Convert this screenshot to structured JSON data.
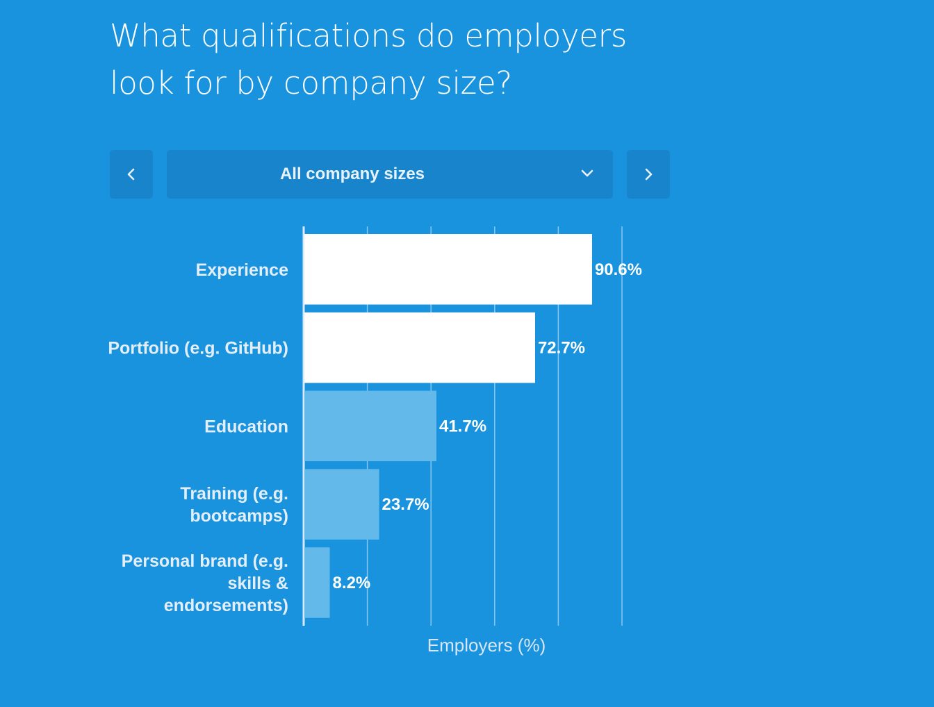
{
  "title_lines": [
    "What qualifications do employers",
    "look for by company size?"
  ],
  "filter": {
    "selected": "All company sizes",
    "prev_icon": "chevron-left-icon",
    "next_icon": "chevron-right-icon",
    "dropdown_icon": "chevron-down-icon"
  },
  "colors": {
    "background": "#1a93de",
    "control": "#1884cc",
    "bar_highlight": "#ffffff",
    "bar_normal": "#63b9ea",
    "gridline": "#8cc6ee"
  },
  "chart_data": {
    "type": "bar",
    "orientation": "horizontal",
    "categories": [
      "Experience",
      "Portfolio (e.g. GitHub)",
      "Education",
      "Training (e.g. bootcamps)",
      "Personal brand (e.g. skills & endorsements)"
    ],
    "category_label_lines": [
      [
        "Experience"
      ],
      [
        "Portfolio (e.g. GitHub)"
      ],
      [
        "Education"
      ],
      [
        "Training (e.g.",
        "bootcamps)"
      ],
      [
        "Personal brand (e.g.",
        "skills &",
        "endorsements)"
      ]
    ],
    "values": [
      90.6,
      72.7,
      41.7,
      23.7,
      8.2
    ],
    "value_labels": [
      "90.6%",
      "72.7%",
      "41.7%",
      "23.7%",
      "8.2%"
    ],
    "highlighted": [
      true,
      true,
      false,
      false,
      false
    ],
    "xlabel": "Employers (%)",
    "ylabel": "",
    "xlim": [
      0,
      100
    ],
    "gridlines": [
      0,
      20,
      40,
      60,
      80,
      100
    ],
    "grid": true
  }
}
